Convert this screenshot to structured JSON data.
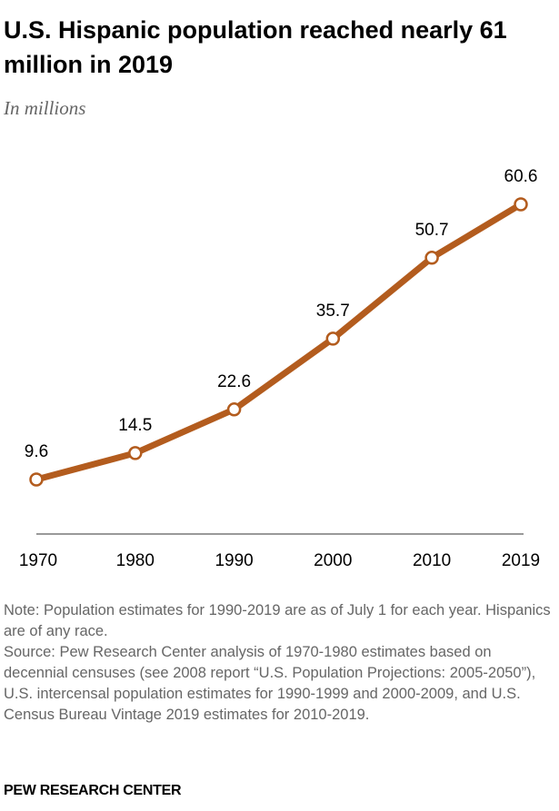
{
  "header": {
    "title": "U.S. Hispanic population reached nearly 61 million in 2019",
    "subtitle": "In millions"
  },
  "chart_data": {
    "type": "line",
    "title": "U.S. Hispanic population reached nearly 61 million in 2019",
    "subtitle": "In millions",
    "xlabel": "",
    "ylabel": "",
    "x": [
      "1970",
      "1980",
      "1990",
      "2000",
      "2010",
      "2019"
    ],
    "series": [
      {
        "values": [
          9.6,
          14.5,
          22.6,
          35.7,
          50.7,
          60.6
        ],
        "labels": [
          "9.6",
          "14.5",
          "22.6",
          "35.7",
          "50.7",
          "60.6"
        ]
      }
    ],
    "ylim": [
      0,
      65
    ],
    "grid": false,
    "legend": "none",
    "line_color": "#b35c1e",
    "marker_fill": "#ffffff",
    "axis_color": "#999999"
  },
  "footer": {
    "note": "Note: Population estimates for 1990-2019 are as of July 1 for each year. Hispanics are of any race.",
    "source": "Source: Pew Research Center analysis of 1970-1980 estimates based on decennial censuses (see 2008 report “U.S. Population Projections: 2005-2050”), U.S. intercensal population estimates for 1990-1999 and 2000-2009, and U.S. Census Bureau Vintage 2019 estimates for 2010-2019.",
    "brand": "PEW RESEARCH CENTER"
  }
}
